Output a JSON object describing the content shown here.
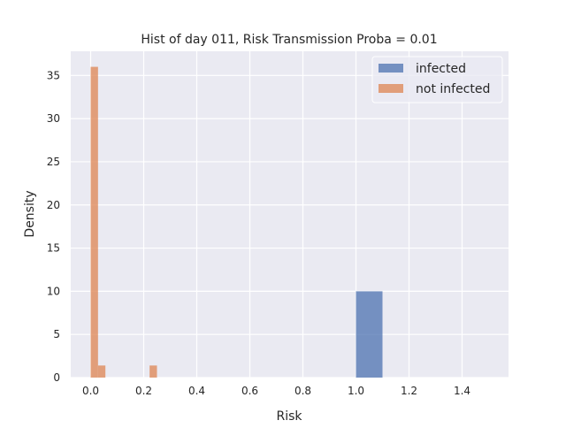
{
  "chart_data": {
    "type": "bar",
    "title": "Hist of day 011, Risk Transmission Proba = 0.01",
    "xlabel": "Risk",
    "ylabel": "Density",
    "xlim": [
      -0.075,
      1.575
    ],
    "ylim": [
      0,
      37.8
    ],
    "xticks": [
      0.0,
      0.2,
      0.4,
      0.6,
      0.8,
      1.0,
      1.2,
      1.4
    ],
    "xtick_labels": [
      "0.0",
      "0.2",
      "0.4",
      "0.6",
      "0.8",
      "1.0",
      "1.2",
      "1.4"
    ],
    "yticks": [
      0,
      5,
      10,
      15,
      20,
      25,
      30,
      35
    ],
    "ytick_labels": [
      "0",
      "5",
      "10",
      "15",
      "20",
      "25",
      "30",
      "35"
    ],
    "grid": true,
    "legend_position": "upper-right",
    "series": [
      {
        "name": "infected",
        "color": "#4c72b0",
        "bins": [
          {
            "x0": 1.0,
            "x1": 1.1,
            "value": 10
          }
        ]
      },
      {
        "name": "not infected",
        "color": "#dd8452",
        "bins": [
          {
            "x0": 0.0,
            "x1": 0.0278,
            "value": 36
          },
          {
            "x0": 0.0278,
            "x1": 0.0556,
            "value": 1.4
          },
          {
            "x0": 0.2222,
            "x1": 0.25,
            "value": 1.4
          }
        ]
      }
    ]
  }
}
